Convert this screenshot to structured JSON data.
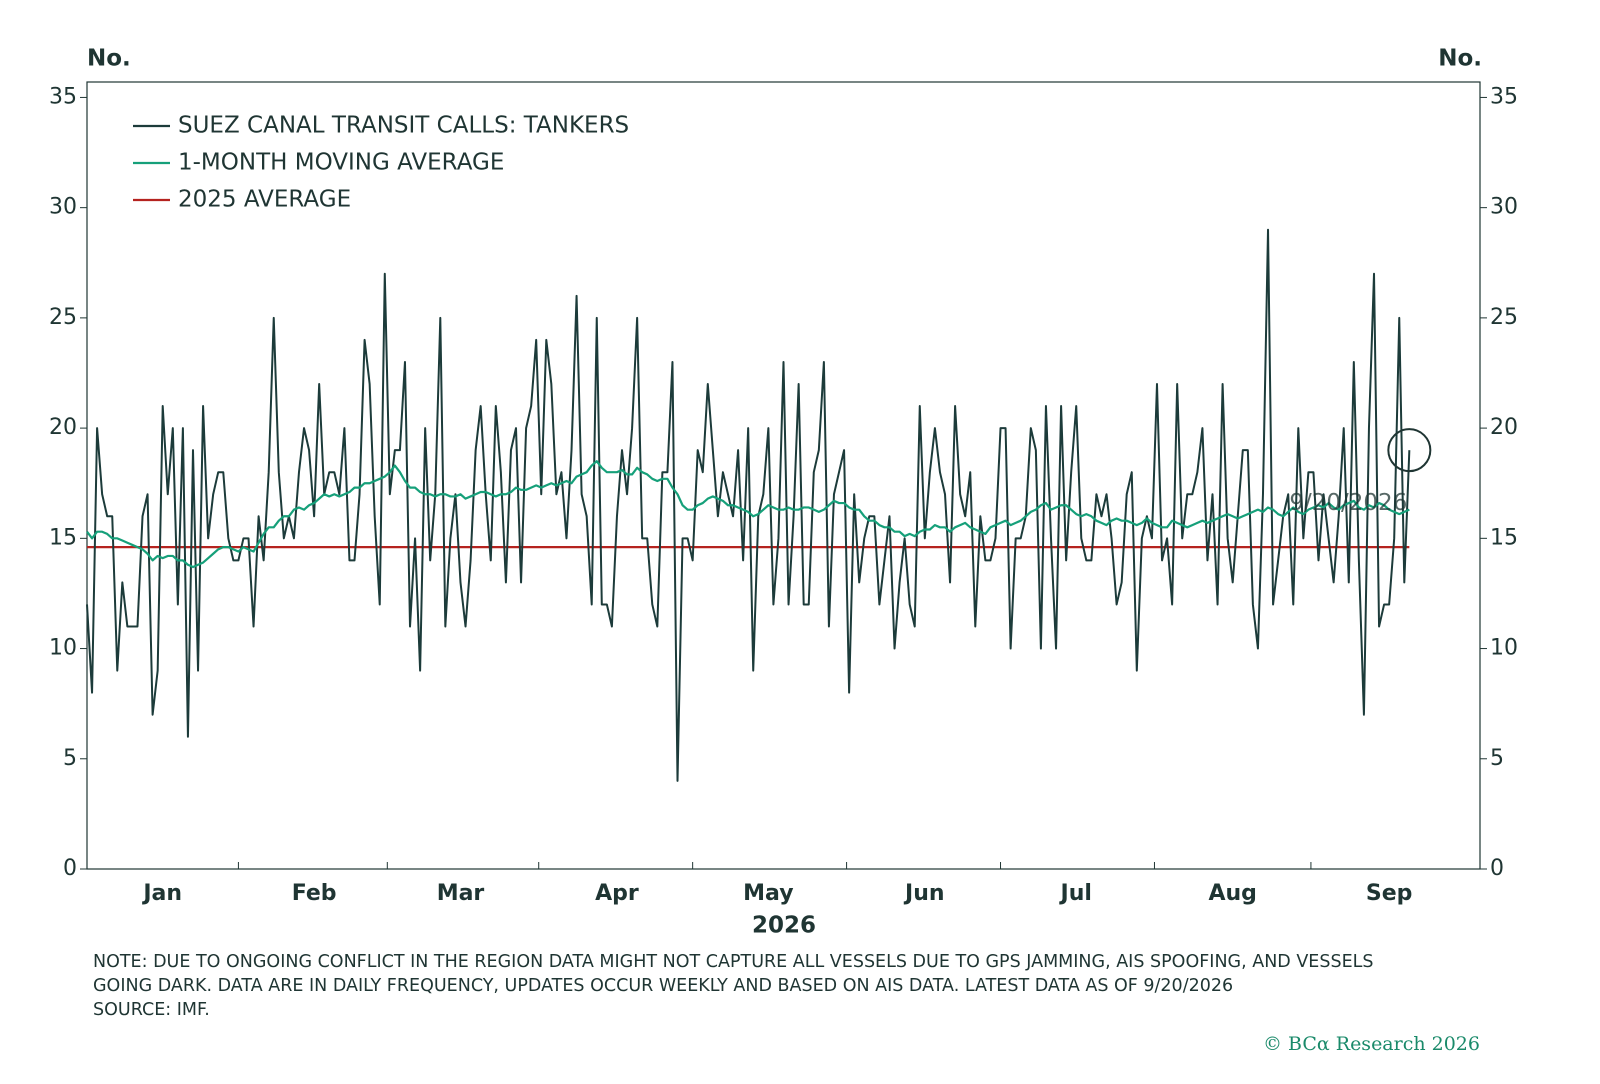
{
  "chart_data": {
    "type": "line",
    "ylabel": "No.",
    "y2label": "No.",
    "xlabel": "2026",
    "x": [
      "2026-01-01",
      "2026-01-02",
      "2026-01-03",
      "2026-01-04",
      "2026-01-05",
      "2026-01-06",
      "2026-01-07",
      "2026-01-08",
      "2026-01-09",
      "2026-01-10",
      "2026-01-11",
      "2026-01-12",
      "2026-01-13",
      "2026-01-14",
      "2026-01-15",
      "2026-01-16",
      "2026-01-17",
      "2026-01-18",
      "2026-01-19",
      "2026-01-20",
      "2026-01-21",
      "2026-01-22",
      "2026-01-23",
      "2026-01-24",
      "2026-01-25",
      "2026-01-26",
      "2026-01-27",
      "2026-01-28",
      "2026-01-29",
      "2026-01-30",
      "2026-01-31",
      "2026-02-01",
      "2026-02-02",
      "2026-02-03",
      "2026-02-04",
      "2026-02-05",
      "2026-02-06",
      "2026-02-07",
      "2026-02-08",
      "2026-02-09",
      "2026-02-10",
      "2026-02-11",
      "2026-02-12",
      "2026-02-13",
      "2026-02-14",
      "2026-02-15",
      "2026-02-16",
      "2026-02-17",
      "2026-02-18",
      "2026-02-19",
      "2026-02-20",
      "2026-02-21",
      "2026-02-22",
      "2026-02-23",
      "2026-02-24",
      "2026-02-25",
      "2026-02-26",
      "2026-02-27",
      "2026-02-28",
      "2026-03-01",
      "2026-03-02",
      "2026-03-03",
      "2026-03-04",
      "2026-03-05",
      "2026-03-06",
      "2026-03-07",
      "2026-03-08",
      "2026-03-09",
      "2026-03-10",
      "2026-03-11",
      "2026-03-12",
      "2026-03-13",
      "2026-03-14",
      "2026-03-15",
      "2026-03-16",
      "2026-03-17",
      "2026-03-18",
      "2026-03-19",
      "2026-03-20",
      "2026-03-21",
      "2026-03-22",
      "2026-03-23",
      "2026-03-24",
      "2026-03-25",
      "2026-03-26",
      "2026-03-27",
      "2026-03-28",
      "2026-03-29",
      "2026-03-30",
      "2026-03-31",
      "2026-04-01",
      "2026-04-02",
      "2026-04-03",
      "2026-04-04",
      "2026-04-05",
      "2026-04-06",
      "2026-04-07",
      "2026-04-08",
      "2026-04-09",
      "2026-04-10",
      "2026-04-11",
      "2026-04-12",
      "2026-04-13",
      "2026-04-14",
      "2026-04-15",
      "2026-04-16",
      "2026-04-17",
      "2026-04-18",
      "2026-04-19",
      "2026-04-20",
      "2026-04-21",
      "2026-04-22",
      "2026-04-23",
      "2026-04-24",
      "2026-04-25",
      "2026-04-26",
      "2026-04-27",
      "2026-04-28",
      "2026-04-29",
      "2026-04-30",
      "2026-05-01",
      "2026-05-02",
      "2026-05-03",
      "2026-05-04",
      "2026-05-05",
      "2026-05-06",
      "2026-05-07",
      "2026-05-08",
      "2026-05-09",
      "2026-05-10",
      "2026-05-11",
      "2026-05-12",
      "2026-05-13",
      "2026-05-14",
      "2026-05-15",
      "2026-05-16",
      "2026-05-17",
      "2026-05-18",
      "2026-05-19",
      "2026-05-20",
      "2026-05-21",
      "2026-05-22",
      "2026-05-23",
      "2026-05-24",
      "2026-05-25",
      "2026-05-26",
      "2026-05-27",
      "2026-05-28",
      "2026-05-29",
      "2026-05-30",
      "2026-05-31",
      "2026-06-01",
      "2026-06-02",
      "2026-06-03",
      "2026-06-04",
      "2026-06-05",
      "2026-06-06",
      "2026-06-07",
      "2026-06-08",
      "2026-06-09",
      "2026-06-10",
      "2026-06-11",
      "2026-06-12",
      "2026-06-13",
      "2026-06-14",
      "2026-06-15",
      "2026-06-16",
      "2026-06-17",
      "2026-06-18",
      "2026-06-19",
      "2026-06-20",
      "2026-06-21",
      "2026-06-22",
      "2026-06-23",
      "2026-06-24",
      "2026-06-25",
      "2026-06-26",
      "2026-06-27",
      "2026-06-28",
      "2026-06-29",
      "2026-06-30",
      "2026-07-01",
      "2026-07-02",
      "2026-07-03",
      "2026-07-04",
      "2026-07-05",
      "2026-07-06",
      "2026-07-07",
      "2026-07-08",
      "2026-07-09",
      "2026-07-10",
      "2026-07-11",
      "2026-07-12",
      "2026-07-13",
      "2026-07-14",
      "2026-07-15",
      "2026-07-16",
      "2026-07-17",
      "2026-07-18",
      "2026-07-19",
      "2026-07-20",
      "2026-07-21",
      "2026-07-22",
      "2026-07-23",
      "2026-07-24",
      "2026-07-25",
      "2026-07-26",
      "2026-07-27",
      "2026-07-28",
      "2026-07-29",
      "2026-07-30",
      "2026-07-31",
      "2026-08-01",
      "2026-08-02",
      "2026-08-03",
      "2026-08-04",
      "2026-08-05",
      "2026-08-06",
      "2026-08-07",
      "2026-08-08",
      "2026-08-09",
      "2026-08-10",
      "2026-08-11",
      "2026-08-12",
      "2026-08-13",
      "2026-08-14",
      "2026-08-15",
      "2026-08-16",
      "2026-08-17",
      "2026-08-18",
      "2026-08-19",
      "2026-08-20",
      "2026-08-21",
      "2026-08-22",
      "2026-08-23",
      "2026-08-24",
      "2026-08-25",
      "2026-08-26",
      "2026-08-27",
      "2026-08-28",
      "2026-08-29",
      "2026-08-30",
      "2026-08-31",
      "2026-09-01",
      "2026-09-02",
      "2026-09-03",
      "2026-09-04",
      "2026-09-05",
      "2026-09-06",
      "2026-09-07",
      "2026-09-08",
      "2026-09-09",
      "2026-09-10",
      "2026-09-11",
      "2026-09-12",
      "2026-09-13",
      "2026-09-14",
      "2026-09-15",
      "2026-09-16",
      "2026-09-17",
      "2026-09-18",
      "2026-09-19",
      "2026-09-20"
    ],
    "series": [
      {
        "name": "SUEZ CANAL TRANSIT CALLS: TANKERS",
        "color": "#1c3b3a",
        "width": 2,
        "values": [
          12,
          8,
          20,
          17,
          16,
          16,
          9,
          13,
          11,
          11,
          11,
          16,
          17,
          7,
          9,
          21,
          17,
          20,
          12,
          20,
          6,
          19,
          9,
          21,
          15,
          17,
          18,
          18,
          15,
          14,
          14,
          15,
          15,
          11,
          16,
          14,
          18,
          25,
          18,
          15,
          16,
          15,
          18,
          20,
          19,
          16,
          22,
          17,
          18,
          18,
          17,
          20,
          14,
          14,
          17,
          24,
          22,
          16,
          12,
          27,
          17,
          19,
          19,
          23,
          11,
          15,
          9,
          20,
          14,
          17,
          25,
          11,
          15,
          17,
          13,
          11,
          14,
          19,
          21,
          17,
          14,
          21,
          18,
          13,
          19,
          20,
          13,
          20,
          21,
          24,
          17,
          24,
          22,
          17,
          18,
          15,
          19,
          26,
          17,
          16,
          12,
          25,
          12,
          12,
          11,
          16,
          19,
          17,
          20,
          25,
          15,
          15,
          12,
          11,
          18,
          18,
          23,
          4,
          15,
          15,
          14,
          19,
          18,
          22,
          19,
          16,
          18,
          17,
          16,
          19,
          14,
          20,
          9,
          16,
          17,
          20,
          12,
          15,
          23,
          12,
          16,
          22,
          12,
          12,
          18,
          19,
          23,
          11,
          17,
          18,
          19,
          8,
          17,
          13,
          15,
          16,
          16,
          12,
          14,
          16,
          10,
          13,
          15,
          12,
          11,
          21,
          15,
          18,
          20,
          18,
          17,
          13,
          21,
          17,
          16,
          18,
          11,
          16,
          14,
          14,
          15,
          20,
          20,
          10,
          15,
          15,
          16,
          20,
          19,
          10,
          21,
          15,
          10,
          21,
          14,
          18,
          21,
          15,
          14,
          14,
          17,
          16,
          17,
          15,
          12,
          13,
          17,
          18,
          9,
          15,
          16,
          15,
          22,
          14,
          15,
          12,
          22,
          15,
          17,
          17,
          18,
          20,
          14,
          17,
          12,
          22,
          15,
          13,
          16,
          19,
          19,
          12,
          10,
          17,
          29,
          12,
          14,
          16,
          17,
          12,
          20,
          15,
          18,
          18,
          14,
          17,
          15,
          13,
          16,
          20,
          13,
          23,
          14,
          7,
          20,
          27,
          11,
          12,
          12,
          15,
          25,
          13,
          19
        ]
      },
      {
        "name": "1-MONTH MOVING AVERAGE",
        "color": "#16a07a",
        "width": 2.2,
        "values": [
          15.3,
          15.0,
          15.3,
          15.3,
          15.2,
          15.0,
          15.0,
          14.9,
          14.8,
          14.7,
          14.6,
          14.5,
          14.3,
          14.0,
          14.2,
          14.1,
          14.2,
          14.2,
          14.0,
          14.0,
          13.8,
          13.7,
          13.8,
          13.9,
          14.1,
          14.3,
          14.5,
          14.6,
          14.6,
          14.5,
          14.4,
          14.6,
          14.5,
          14.4,
          14.8,
          15.2,
          15.5,
          15.5,
          15.8,
          16.0,
          16.0,
          16.3,
          16.4,
          16.3,
          16.5,
          16.6,
          16.8,
          17.0,
          16.9,
          17.0,
          16.9,
          17.0,
          17.1,
          17.3,
          17.3,
          17.5,
          17.5,
          17.6,
          17.7,
          17.8,
          18.0,
          18.3,
          18.0,
          17.6,
          17.3,
          17.3,
          17.1,
          17.0,
          17.0,
          16.9,
          17.0,
          17.0,
          16.9,
          16.9,
          17.0,
          16.8,
          16.9,
          17.0,
          17.1,
          17.1,
          17.0,
          16.9,
          17.0,
          17.0,
          17.1,
          17.3,
          17.2,
          17.2,
          17.3,
          17.4,
          17.3,
          17.4,
          17.5,
          17.4,
          17.5,
          17.6,
          17.5,
          17.8,
          17.9,
          18.0,
          18.3,
          18.5,
          18.2,
          18.0,
          18.0,
          18.0,
          18.1,
          17.9,
          17.9,
          18.2,
          18.0,
          17.9,
          17.7,
          17.6,
          17.7,
          17.7,
          17.3,
          17.0,
          16.5,
          16.3,
          16.3,
          16.5,
          16.6,
          16.8,
          16.9,
          16.8,
          16.7,
          16.5,
          16.5,
          16.4,
          16.3,
          16.2,
          16.0,
          16.1,
          16.3,
          16.5,
          16.4,
          16.3,
          16.3,
          16.4,
          16.3,
          16.3,
          16.4,
          16.4,
          16.3,
          16.2,
          16.3,
          16.5,
          16.7,
          16.6,
          16.6,
          16.4,
          16.3,
          16.3,
          16.0,
          15.8,
          15.8,
          15.6,
          15.5,
          15.5,
          15.3,
          15.3,
          15.1,
          15.2,
          15.1,
          15.3,
          15.4,
          15.4,
          15.6,
          15.5,
          15.5,
          15.3,
          15.5,
          15.6,
          15.7,
          15.5,
          15.4,
          15.3,
          15.2,
          15.5,
          15.6,
          15.7,
          15.8,
          15.6,
          15.7,
          15.8,
          16.0,
          16.2,
          16.3,
          16.5,
          16.6,
          16.3,
          16.4,
          16.5,
          16.5,
          16.3,
          16.1,
          16.0,
          16.1,
          16.0,
          15.8,
          15.7,
          15.6,
          15.8,
          15.9,
          15.8,
          15.8,
          15.7,
          15.6,
          15.7,
          15.9,
          15.7,
          15.6,
          15.5,
          15.5,
          15.8,
          15.7,
          15.6,
          15.5,
          15.6,
          15.7,
          15.8,
          15.7,
          15.8,
          15.9,
          16.0,
          16.1,
          16.0,
          15.9,
          16.0,
          16.1,
          16.2,
          16.3,
          16.2,
          16.4,
          16.3,
          16.1,
          16.0,
          16.2,
          16.4,
          16.2,
          16.1,
          16.3,
          16.4,
          16.5,
          16.4,
          16.6,
          16.4,
          16.3,
          16.5,
          16.6,
          16.7,
          16.4,
          16.3,
          16.5,
          16.4,
          16.6,
          16.5,
          16.3,
          16.2,
          16.1,
          16.2,
          16.3
        ]
      }
    ],
    "reference_line": {
      "name": "2025 AVERAGE",
      "value": 14.6,
      "color": "#b5231f"
    },
    "annotation": "9/20/2026",
    "xlim": [
      "2026-01-01",
      "2026-10-04"
    ],
    "xticks": [
      {
        "value": "2026-01-16",
        "label": "Jan"
      },
      {
        "value": "2026-02-15",
        "label": "Feb"
      },
      {
        "value": "2026-03-16",
        "label": "Mar"
      },
      {
        "value": "2026-04-16",
        "label": "Apr"
      },
      {
        "value": "2026-05-16",
        "label": "May"
      },
      {
        "value": "2026-06-16",
        "label": "Jun"
      },
      {
        "value": "2026-07-16",
        "label": "Jul"
      },
      {
        "value": "2026-08-16",
        "label": "Aug"
      },
      {
        "value": "2026-09-16",
        "label": "Sep"
      }
    ],
    "ylim": [
      0,
      35.7
    ],
    "yticks": [
      0,
      5,
      10,
      15,
      20,
      25,
      30,
      35
    ],
    "y2lim": [
      0,
      35.7
    ],
    "y2ticks": [
      0,
      5,
      10,
      15,
      20,
      25,
      30,
      35
    ],
    "legend": "upper left"
  },
  "notes": [
    "NOTE: DUE TO ONGOING CONFLICT IN THE REGION DATA MIGHT NOT CAPTURE ALL VESSELS DUE TO GPS JAMMING, AIS SPOOFING, AND VESSELS",
    "GOING DARK. DATA ARE IN DAILY FREQUENCY, UPDATES OCCUR WEEKLY AND BASED ON AIS DATA. LATEST DATA AS OF 9/20/2026",
    "SOURCE: IMF."
  ],
  "copyright": "© BCα Research 2026"
}
